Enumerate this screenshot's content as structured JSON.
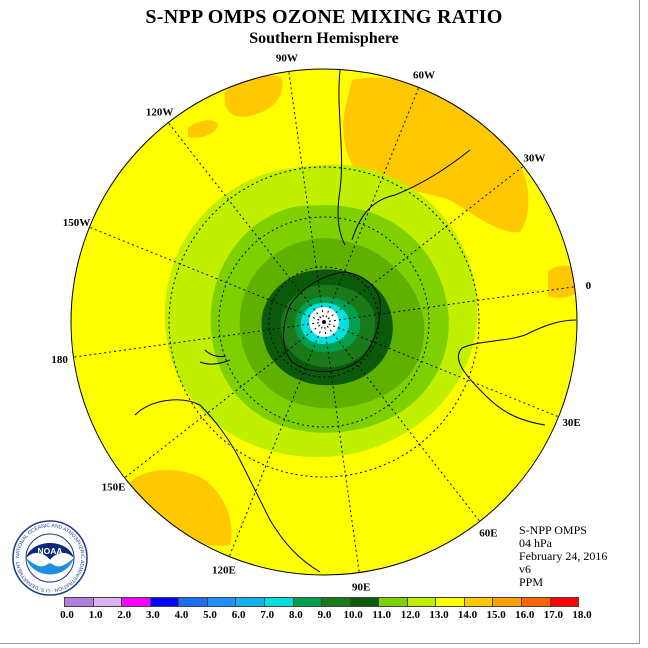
{
  "title": "S-NPP OMPS OZONE MIXING RATIO",
  "subtitle": "Southern Hemisphere",
  "info": {
    "instrument": "S-NPP OMPS",
    "level": "04 hPa",
    "date": "February 24, 2016",
    "version": "v6",
    "units": "PPM"
  },
  "logo": {
    "text": "NOAA",
    "ring_text": "NATIONAL OCEANIC AND ATMOSPHERIC ADMINISTRATION · U.S. DEPARTMENT OF COMMERCE"
  },
  "longitude_labels": [
    "0",
    "30E",
    "60E",
    "90E",
    "120E",
    "150E",
    "180",
    "150W",
    "120W",
    "90W",
    "60W",
    "30W"
  ],
  "colorbar": {
    "labels": [
      "0.0",
      "1.0",
      "2.0",
      "3.0",
      "4.0",
      "5.0",
      "6.0",
      "7.0",
      "8.0",
      "9.0",
      "10.0",
      "11.0",
      "12.0",
      "13.0",
      "14.0",
      "15.0",
      "16.0",
      "17.0",
      "18.0"
    ],
    "colors": [
      "#b07fe0",
      "#dcb3f0",
      "#ff00ff",
      "#0000ff",
      "#1a6ef0",
      "#1e90ff",
      "#12b0f0",
      "#00e0e0",
      "#00a050",
      "#1a7a1a",
      "#0a5a0a",
      "#7fd000",
      "#c0f000",
      "#ffff00",
      "#ffc800",
      "#ffa000",
      "#ff6400",
      "#ff0000",
      "#8b5a2b"
    ]
  },
  "field_colors": {
    "band_13_14": "#ffff00",
    "band_14_15": "#ffc800",
    "band_12_13": "#c0f000",
    "band_11_12": "#7fd000",
    "band_10_11": "#60b000",
    "band_9_10": "#0a5a0a",
    "band_8_9": "#1a7a1a",
    "band_7_8": "#00a050",
    "band_6_7": "#00e0e0",
    "center": "#ffffff"
  }
}
